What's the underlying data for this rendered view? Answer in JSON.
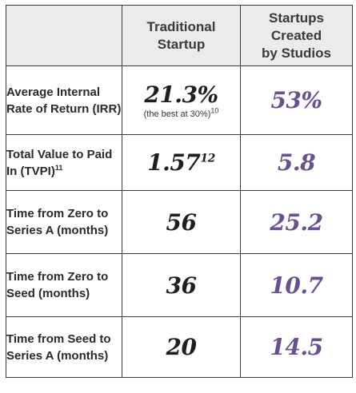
{
  "header": {
    "col1": "",
    "col2": [
      "Traditional",
      "Startup"
    ],
    "col3": [
      "Startups",
      "Created",
      "by Studios"
    ]
  },
  "rows": [
    {
      "label": "Average Internal Rate of Return (IRR)",
      "traditional": "21.3%",
      "traditional_note": "(the best at 30%)",
      "traditional_note_footnote": "10",
      "studio": "53%"
    },
    {
      "label": "Total Value to Paid In (TVPI)",
      "label_footnote": "11",
      "traditional": "1.57",
      "traditional_footnote": "12",
      "studio": "5.8"
    },
    {
      "label": "Time from Zero to Series A (months)",
      "traditional": "56",
      "studio": "25.2"
    },
    {
      "label": "Time from Zero to Seed (months)",
      "traditional": "36",
      "studio": "10.7"
    },
    {
      "label": "Time from Seed to Series A (months)",
      "traditional": "20",
      "studio": "14.5"
    }
  ]
}
